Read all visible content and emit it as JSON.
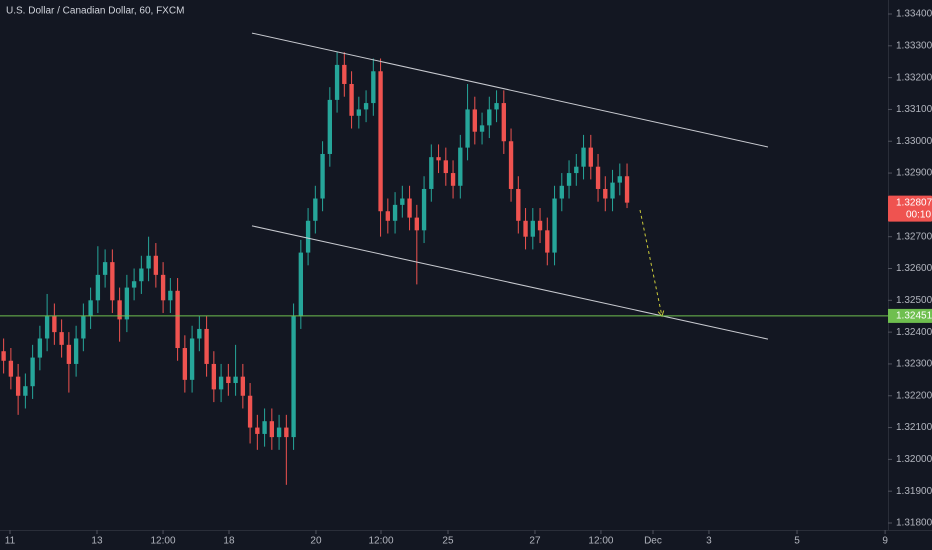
{
  "chart_data": {
    "type": "candlestick",
    "title": "U.S. Dollar / Canadian Dollar, 60, FXCM",
    "up_color": "#26a69a",
    "down_color": "#ef5350",
    "open": [
      1.3234,
      1.3231,
      1.3226,
      1.322,
      1.3223,
      1.3232,
      1.3238,
      1.3245,
      1.324,
      1.3236,
      1.323,
      1.3238,
      1.3245,
      1.325,
      1.3258,
      1.3262,
      1.325,
      1.3244,
      1.3254,
      1.3256,
      1.326,
      1.3264,
      1.3258,
      1.325,
      1.3253,
      1.3235,
      1.3225,
      1.3238,
      1.3241,
      1.323,
      1.3222,
      1.3226,
      1.3224,
      1.3226,
      1.322,
      1.321,
      1.3208,
      1.3212,
      1.3207,
      1.321,
      1.3207,
      1.3245,
      1.3265,
      1.3275,
      1.3282,
      1.3296,
      1.3313,
      1.3324,
      1.3318,
      1.3308,
      1.331,
      1.3312,
      1.3322,
      1.3278,
      1.3275,
      1.328,
      1.3282,
      1.3276,
      1.3272,
      1.3285,
      1.3295,
      1.3294,
      1.329,
      1.3286,
      1.3298,
      1.331,
      1.3303,
      1.3305,
      1.331,
      1.3312,
      1.33,
      1.3285,
      1.3275,
      1.327,
      1.3275,
      1.3272,
      1.3265,
      1.3282,
      1.3286,
      1.329,
      1.3292,
      1.3298,
      1.3292,
      1.3285,
      1.3282,
      1.3287,
      1.3289
    ],
    "high": [
      1.3238,
      1.3235,
      1.323,
      1.3227,
      1.3236,
      1.3242,
      1.3252,
      1.3249,
      1.3244,
      1.324,
      1.3242,
      1.3249,
      1.3254,
      1.3267,
      1.3266,
      1.3266,
      1.3254,
      1.3258,
      1.326,
      1.3264,
      1.327,
      1.3268,
      1.3262,
      1.3257,
      1.3257,
      1.3239,
      1.3242,
      1.3245,
      1.3245,
      1.3234,
      1.323,
      1.323,
      1.3236,
      1.323,
      1.3224,
      1.3214,
      1.3216,
      1.3216,
      1.3214,
      1.3214,
      1.3249,
      1.3269,
      1.3279,
      1.3286,
      1.33,
      1.3317,
      1.3328,
      1.3328,
      1.3322,
      1.3314,
      1.3316,
      1.3326,
      1.3326,
      1.3282,
      1.3284,
      1.3286,
      1.3286,
      1.328,
      1.3289,
      1.3299,
      1.3299,
      1.3298,
      1.3294,
      1.3302,
      1.3318,
      1.3314,
      1.3309,
      1.3314,
      1.3316,
      1.3316,
      1.3304,
      1.3289,
      1.3279,
      1.3279,
      1.3279,
      1.3276,
      1.3286,
      1.329,
      1.3294,
      1.3296,
      1.3302,
      1.3302,
      1.3296,
      1.3289,
      1.3291,
      1.3293,
      1.3293
    ],
    "low": [
      1.3227,
      1.3222,
      1.3214,
      1.3216,
      1.3219,
      1.3228,
      1.3234,
      1.3236,
      1.3232,
      1.3221,
      1.3226,
      1.3234,
      1.3241,
      1.3246,
      1.3254,
      1.3246,
      1.3237,
      1.324,
      1.325,
      1.3252,
      1.3256,
      1.3254,
      1.3246,
      1.3246,
      1.3231,
      1.3221,
      1.3221,
      1.3234,
      1.3226,
      1.3218,
      1.3218,
      1.322,
      1.322,
      1.3216,
      1.3205,
      1.3203,
      1.3204,
      1.3203,
      1.3203,
      1.3192,
      1.3203,
      1.3241,
      1.3261,
      1.3271,
      1.3278,
      1.3292,
      1.3309,
      1.3314,
      1.3304,
      1.3304,
      1.3306,
      1.3308,
      1.327,
      1.3271,
      1.3271,
      1.3276,
      1.3272,
      1.3255,
      1.3268,
      1.3281,
      1.329,
      1.3286,
      1.3282,
      1.3282,
      1.3294,
      1.3299,
      1.3299,
      1.3301,
      1.3306,
      1.3296,
      1.3281,
      1.3271,
      1.3266,
      1.3266,
      1.3268,
      1.3261,
      1.3261,
      1.3278,
      1.3282,
      1.3286,
      1.3288,
      1.3288,
      1.3281,
      1.3278,
      1.3278,
      1.3283,
      1.3279
    ],
    "close": [
      1.3231,
      1.3226,
      1.322,
      1.3223,
      1.3232,
      1.3238,
      1.3245,
      1.324,
      1.3236,
      1.323,
      1.3238,
      1.3245,
      1.325,
      1.3258,
      1.3262,
      1.325,
      1.3244,
      1.3254,
      1.3256,
      1.326,
      1.3264,
      1.3258,
      1.325,
      1.3253,
      1.3235,
      1.3225,
      1.3238,
      1.3241,
      1.323,
      1.3222,
      1.3226,
      1.3224,
      1.3226,
      1.322,
      1.321,
      1.3208,
      1.3212,
      1.3207,
      1.321,
      1.3207,
      1.3245,
      1.3265,
      1.3275,
      1.3282,
      1.3296,
      1.3313,
      1.3324,
      1.3318,
      1.3308,
      1.331,
      1.3312,
      1.3322,
      1.3278,
      1.3275,
      1.328,
      1.3282,
      1.3276,
      1.3272,
      1.3285,
      1.3295,
      1.3294,
      1.329,
      1.3286,
      1.3298,
      1.331,
      1.3303,
      1.3305,
      1.331,
      1.3312,
      1.33,
      1.3285,
      1.3275,
      1.327,
      1.3275,
      1.3272,
      1.3265,
      1.3282,
      1.3286,
      1.329,
      1.3292,
      1.3298,
      1.3292,
      1.3285,
      1.3282,
      1.3287,
      1.3289,
      1.32807
    ],
    "xlim": [
      -0.5,
      122
    ],
    "ylim": [
      1.31778,
      1.33444
    ],
    "xticks": [
      {
        "value": 0.88,
        "label": "11"
      },
      {
        "value": 12.88,
        "label": "13"
      },
      {
        "value": 21.99,
        "label": "12:00"
      },
      {
        "value": 31.09,
        "label": "18"
      },
      {
        "value": 43.09,
        "label": "20"
      },
      {
        "value": 52.06,
        "label": "12:00"
      },
      {
        "value": 61.3,
        "label": "25"
      },
      {
        "value": 73.3,
        "label": "27"
      },
      {
        "value": 82.4,
        "label": "12:00"
      },
      {
        "value": 89.58,
        "label": "Dec"
      },
      {
        "value": 97.3,
        "label": "3"
      },
      {
        "value": 109.45,
        "label": "5"
      },
      {
        "value": 121.6,
        "label": "9"
      }
    ],
    "yticks": [
      {
        "value": 1.334,
        "label": "1.33400"
      },
      {
        "value": 1.333,
        "label": "1.33300"
      },
      {
        "value": 1.332,
        "label": "1.33200"
      },
      {
        "value": 1.331,
        "label": "1.33100"
      },
      {
        "value": 1.33,
        "label": "1.33000"
      },
      {
        "value": 1.329,
        "label": "1.32900"
      },
      {
        "value": 1.327,
        "label": "1.32700"
      },
      {
        "value": 1.326,
        "label": "1.32600"
      },
      {
        "value": 1.325,
        "label": "1.32500"
      },
      {
        "value": 1.324,
        "label": "1.32400"
      },
      {
        "value": 1.323,
        "label": "1.32300"
      },
      {
        "value": 1.322,
        "label": "1.32200"
      },
      {
        "value": 1.321,
        "label": "1.32100"
      },
      {
        "value": 1.32,
        "label": "1.32000"
      },
      {
        "value": 1.319,
        "label": "1.31900"
      },
      {
        "value": 1.318,
        "label": "1.31800"
      }
    ],
    "last_price": 1.32807,
    "countdown": "00:10",
    "level": 1.32451,
    "level_color": "#6fbf4f",
    "trend_lines": [
      {
        "x": [
          34.26,
          105.44
        ],
        "y": [
          1.3334,
          1.32982
        ]
      },
      {
        "x": [
          34.26,
          105.44
        ],
        "y": [
          1.32734,
          1.32378
        ]
      }
    ],
    "arrow": {
      "x": [
        87.79,
        90.82
      ],
      "y": [
        1.32784,
        1.3245
      ],
      "color": "#c9c93a"
    }
  }
}
